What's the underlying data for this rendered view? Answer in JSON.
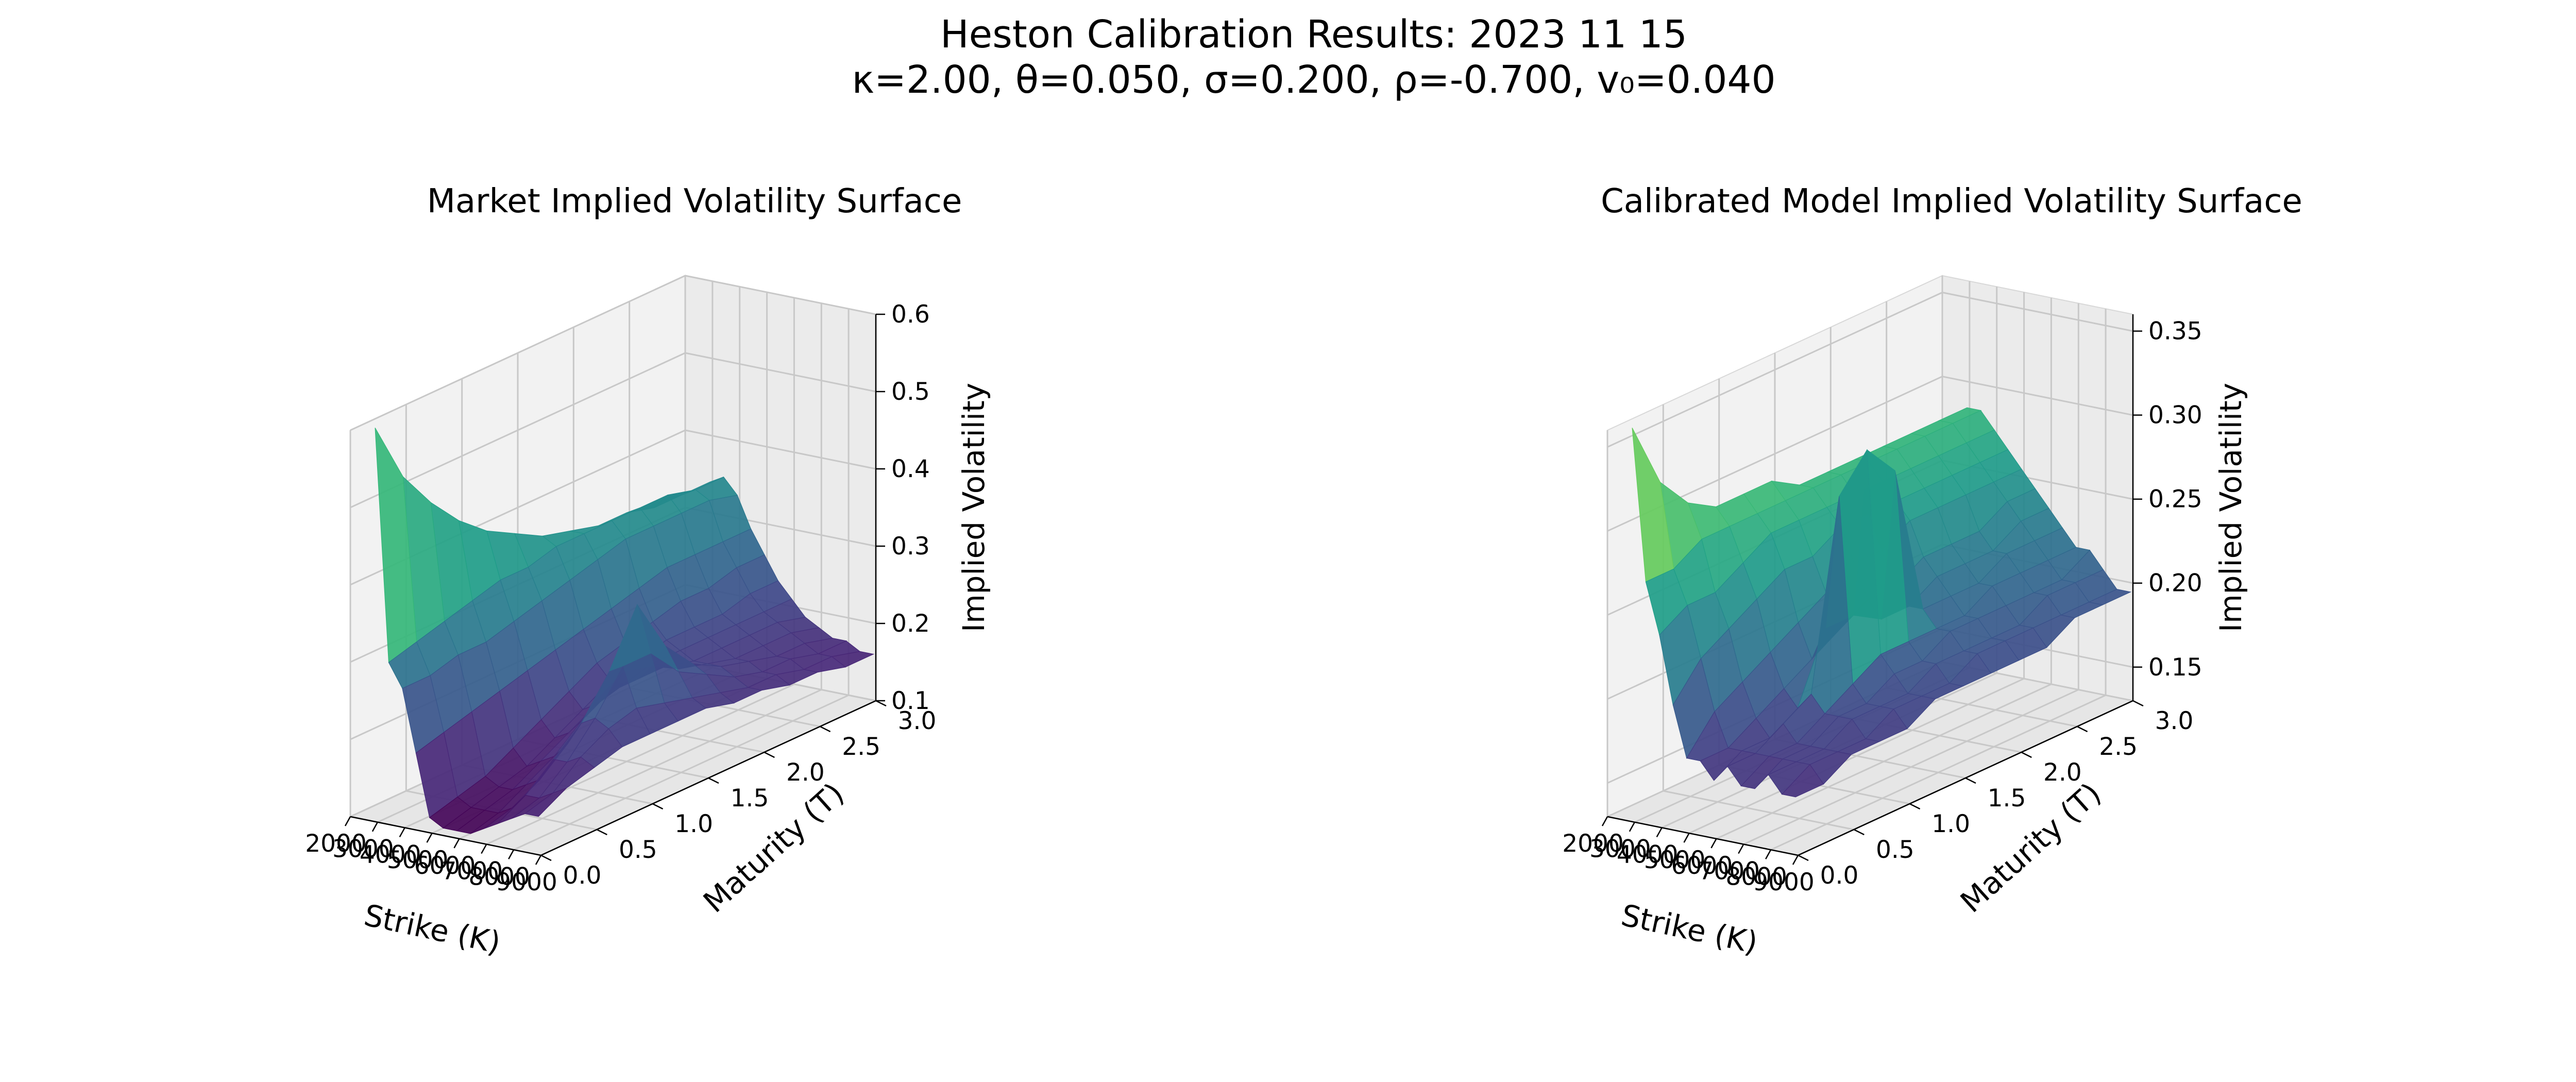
{
  "figure": {
    "suptitle_line1": "Heston Calibration Results: 2023 11 15",
    "suptitle_line2": "κ=2.00, θ=0.050, σ=0.200, ρ=-0.700, v₀=0.040"
  },
  "colormap": [
    "#440154",
    "#482878",
    "#3e4989",
    "#31688e",
    "#26828e",
    "#1f9e89",
    "#35b779",
    "#6ece58",
    "#b5de2b",
    "#fde725"
  ],
  "chart_data": [
    {
      "type": "surface",
      "title": "Market Implied Volatility Surface",
      "xlabel": "Strike (K)",
      "ylabel": "Maturity (T)",
      "zlabel": "Implied Volatility",
      "xlim": [
        2000,
        9000
      ],
      "ylim": [
        0.0,
        3.0
      ],
      "zlim": [
        0.1,
        0.6
      ],
      "xticks": [
        "2000",
        "3000",
        "4000",
        "5000",
        "6000",
        "7000",
        "8000",
        "9000"
      ],
      "yticks": [
        "0.0",
        "0.5",
        "1.0",
        "1.5",
        "2.0",
        "2.5",
        "3.0"
      ],
      "zticks": [
        "0.1",
        "0.2",
        "0.3",
        "0.4",
        "0.5",
        "0.6"
      ],
      "strikes": [
        2500,
        3000,
        3500,
        4000,
        4500,
        5000,
        5500,
        6000,
        6500,
        7000,
        7500,
        8000,
        8500
      ],
      "maturities": [
        0.1,
        0.35,
        0.6,
        0.85,
        1.1,
        1.35,
        1.6,
        1.85,
        2.1,
        2.35,
        2.6,
        2.85,
        3.1
      ],
      "z": [
        [
          0.6,
          0.3,
          0.27,
          0.19,
          0.11,
          0.1,
          0.1,
          0.1,
          0.11,
          0.12,
          0.13,
          0.14,
          0.14
        ],
        [
          0.52,
          0.31,
          0.27,
          0.2,
          0.12,
          0.11,
          0.11,
          0.11,
          0.12,
          0.14,
          0.14,
          0.15,
          0.16
        ],
        [
          0.47,
          0.32,
          0.28,
          0.21,
          0.13,
          0.12,
          0.12,
          0.13,
          0.14,
          0.17,
          0.17,
          0.18,
          0.17
        ],
        [
          0.43,
          0.33,
          0.28,
          0.22,
          0.15,
          0.13,
          0.14,
          0.15,
          0.17,
          0.2,
          0.21,
          0.2,
          0.18
        ],
        [
          0.4,
          0.34,
          0.29,
          0.23,
          0.17,
          0.15,
          0.16,
          0.18,
          0.21,
          0.25,
          0.26,
          0.21,
          0.18
        ],
        [
          0.38,
          0.34,
          0.3,
          0.24,
          0.19,
          0.17,
          0.18,
          0.2,
          0.23,
          0.32,
          0.26,
          0.2,
          0.18
        ],
        [
          0.36,
          0.35,
          0.31,
          0.25,
          0.21,
          0.19,
          0.19,
          0.2,
          0.22,
          0.25,
          0.22,
          0.19,
          0.18
        ],
        [
          0.35,
          0.35,
          0.32,
          0.26,
          0.22,
          0.2,
          0.2,
          0.2,
          0.2,
          0.21,
          0.2,
          0.18,
          0.17
        ],
        [
          0.34,
          0.35,
          0.33,
          0.27,
          0.23,
          0.21,
          0.2,
          0.19,
          0.19,
          0.19,
          0.18,
          0.17,
          0.17
        ],
        [
          0.34,
          0.35,
          0.33,
          0.28,
          0.24,
          0.21,
          0.2,
          0.19,
          0.18,
          0.18,
          0.17,
          0.17,
          0.16
        ],
        [
          0.33,
          0.35,
          0.33,
          0.28,
          0.24,
          0.21,
          0.2,
          0.19,
          0.18,
          0.17,
          0.17,
          0.16,
          0.16
        ],
        [
          0.33,
          0.34,
          0.33,
          0.28,
          0.25,
          0.22,
          0.2,
          0.19,
          0.18,
          0.17,
          0.16,
          0.16,
          0.15
        ],
        [
          0.33,
          0.34,
          0.32,
          0.28,
          0.25,
          0.22,
          0.2,
          0.18,
          0.17,
          0.16,
          0.16,
          0.15,
          0.15
        ]
      ]
    },
    {
      "type": "surface",
      "title": "Calibrated Model Implied Volatility Surface",
      "xlabel": "Strike (K)",
      "ylabel": "Maturity (T)",
      "zlabel": "Implied Volatility",
      "xlim": [
        2000,
        9000
      ],
      "ylim": [
        0.0,
        3.0
      ],
      "zlim": [
        0.13,
        0.36
      ],
      "xticks": [
        "2000",
        "3000",
        "4000",
        "5000",
        "6000",
        "7000",
        "8000",
        "9000"
      ],
      "yticks": [
        "0.0",
        "0.5",
        "1.0",
        "1.5",
        "2.0",
        "2.5",
        "3.0"
      ],
      "zticks": [
        "0.15",
        "0.20",
        "0.25",
        "0.30",
        "0.35"
      ],
      "strikes": [
        2500,
        3000,
        3500,
        4000,
        4500,
        5000,
        5500,
        6000,
        6500,
        7000,
        7500,
        8000,
        8500
      ],
      "maturities": [
        0.1,
        0.35,
        0.6,
        0.85,
        1.1,
        1.35,
        1.6,
        1.85,
        2.1,
        2.35,
        2.6,
        2.85,
        3.1
      ],
      "z": [
        [
          0.36,
          0.27,
          0.24,
          0.2,
          0.17,
          0.17,
          0.16,
          0.17,
          0.16,
          0.16,
          0.17,
          0.16,
          0.16
        ],
        [
          0.32,
          0.27,
          0.25,
          0.22,
          0.19,
          0.17,
          0.17,
          0.17,
          0.17,
          0.17,
          0.17,
          0.17,
          0.16
        ],
        [
          0.3,
          0.28,
          0.25,
          0.23,
          0.2,
          0.18,
          0.17,
          0.18,
          0.17,
          0.17,
          0.17,
          0.17,
          0.17
        ],
        [
          0.29,
          0.28,
          0.26,
          0.24,
          0.21,
          0.19,
          0.18,
          0.19,
          0.18,
          0.18,
          0.18,
          0.17,
          0.17
        ],
        [
          0.29,
          0.28,
          0.27,
          0.25,
          0.22,
          0.2,
          0.22,
          0.3,
          0.19,
          0.18,
          0.18,
          0.18,
          0.17
        ],
        [
          0.29,
          0.28,
          0.27,
          0.25,
          0.23,
          0.21,
          0.22,
          0.32,
          0.2,
          0.19,
          0.18,
          0.18,
          0.18
        ],
        [
          0.28,
          0.28,
          0.27,
          0.26,
          0.24,
          0.22,
          0.21,
          0.3,
          0.2,
          0.19,
          0.19,
          0.18,
          0.18
        ],
        [
          0.28,
          0.28,
          0.27,
          0.26,
          0.24,
          0.22,
          0.21,
          0.21,
          0.2,
          0.2,
          0.19,
          0.19,
          0.18
        ],
        [
          0.28,
          0.28,
          0.27,
          0.26,
          0.25,
          0.23,
          0.22,
          0.21,
          0.2,
          0.2,
          0.19,
          0.19,
          0.18
        ],
        [
          0.28,
          0.28,
          0.27,
          0.26,
          0.25,
          0.23,
          0.22,
          0.21,
          0.21,
          0.2,
          0.19,
          0.19,
          0.18
        ],
        [
          0.28,
          0.28,
          0.27,
          0.26,
          0.25,
          0.23,
          0.22,
          0.22,
          0.21,
          0.2,
          0.2,
          0.19,
          0.19
        ],
        [
          0.28,
          0.28,
          0.27,
          0.26,
          0.25,
          0.24,
          0.23,
          0.22,
          0.21,
          0.2,
          0.2,
          0.19,
          0.19
        ],
        [
          0.28,
          0.28,
          0.27,
          0.26,
          0.25,
          0.24,
          0.23,
          0.22,
          0.21,
          0.21,
          0.2,
          0.19,
          0.19
        ]
      ]
    }
  ]
}
